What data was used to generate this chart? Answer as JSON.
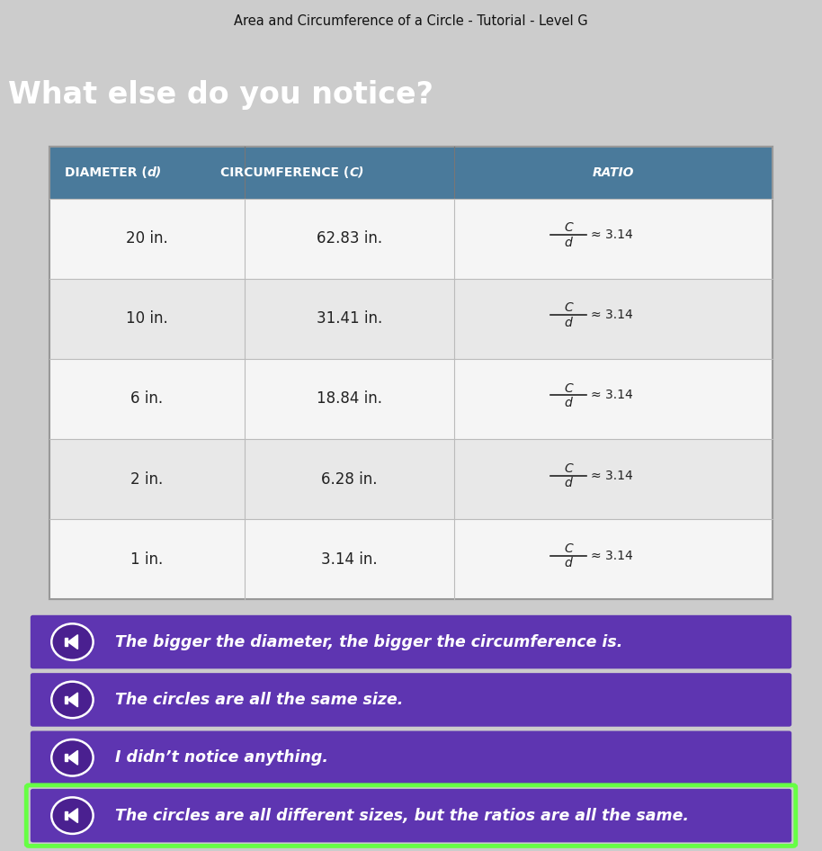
{
  "title": "Area and Circumference of a Circle - Tutorial - Level G",
  "question": "What else do you notice?",
  "bg_titlebar": "#cccccc",
  "bg_blue_header": "#1e3bbf",
  "bg_content": "#7a8f6a",
  "table_header_bg": "#4a7a9b",
  "table_bg": "#ffffff",
  "table_row_bg1": "#f5f5f5",
  "table_row_bg2": "#e8e8e8",
  "table_border": "#999999",
  "col_headers": [
    "DIAMETER (d)",
    "CIRCUMFERENCE (C)",
    "RATIO"
  ],
  "rows": [
    [
      "20 in.",
      "62.83 in."
    ],
    [
      "10 in.",
      "31.41 in."
    ],
    [
      "6 in.",
      "18.84 in."
    ],
    [
      "2 in.",
      "6.28 in."
    ],
    [
      "1 in.",
      "3.14 in."
    ]
  ],
  "options": [
    {
      "text": "The bigger the diameter, the bigger the circumference is.",
      "selected": false
    },
    {
      "text": "The circles are all the same size.",
      "selected": false
    },
    {
      "text": "I didn’t notice anything.",
      "selected": false
    },
    {
      "text": "The circles are all different sizes, but the ratios are all the same.",
      "selected": true
    }
  ],
  "option_bg": "#5e35b1",
  "option_selected_border": "#66ff44",
  "option_text_color": "#ffffff"
}
